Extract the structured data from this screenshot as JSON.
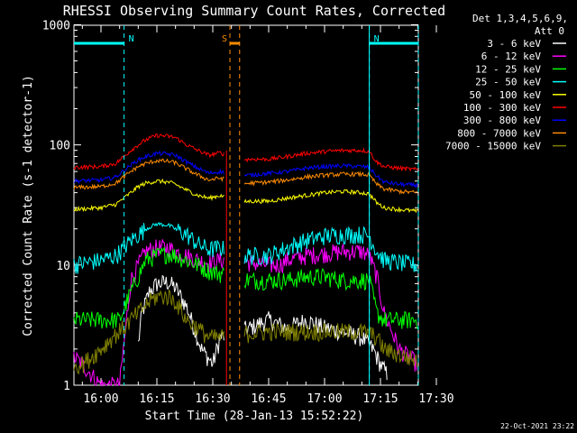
{
  "chart_data": {
    "type": "line",
    "title": "RHESSI Observing Summary Count Rates, Corrected",
    "xlabel": "Start Time (28-Jan-13 15:52:22)",
    "ylabel": "Corrected Count Rate (s-1 detector-1)",
    "yscale": "log",
    "ylim": [
      1,
      1000
    ],
    "xlim": [
      "15:52:22",
      "17:32:00"
    ],
    "y_ticks": [
      "1",
      "10",
      "100",
      "1000"
    ],
    "x_ticks": [
      "16:00",
      "16:15",
      "16:30",
      "16:45",
      "17:00",
      "17:15",
      "17:30"
    ],
    "x_tick_minutes": [
      0,
      15,
      30,
      45,
      60,
      75,
      90
    ],
    "legend_header": [
      "Det 1,3,4,5,6,9,",
      "Att 0"
    ],
    "legend_position": "right",
    "grid": false,
    "timestamp": "22-Oct-2021 23:22",
    "markers": [
      {
        "label": "N",
        "color": "#00ffff",
        "start_min": -8,
        "end_min": 6.2,
        "row": "top",
        "extends_to": "top-left"
      },
      {
        "label": "N",
        "color": "#00ffff",
        "start_min": 72,
        "end_min": 90,
        "row": "top",
        "extends_to": "top-right"
      },
      {
        "label": "S",
        "color": "#ff8c00",
        "start_min": 34.6,
        "end_min": 37.2,
        "row": "top"
      }
    ],
    "series": [
      {
        "name": "3 - 6 keV",
        "color": "#ffffff",
        "points": [
          [
            10,
            2.2
          ],
          [
            11,
            4.0
          ],
          [
            13,
            6.0
          ],
          [
            15,
            7.0
          ],
          [
            18,
            7.2
          ],
          [
            20,
            6.5
          ],
          [
            23,
            4.5
          ],
          [
            25,
            3.0
          ],
          [
            27,
            2.0
          ],
          [
            30,
            1.5
          ],
          [
            32,
            2.5
          ],
          [
            40,
            3.0
          ],
          [
            45,
            3.5
          ],
          [
            50,
            3.0
          ],
          [
            55,
            3.5
          ],
          [
            60,
            3.0
          ],
          [
            65,
            2.8
          ],
          [
            70,
            2.5
          ],
          [
            73,
            2.0
          ],
          [
            75,
            1.5
          ],
          [
            77,
            1.2
          ]
        ]
      },
      {
        "name": "6 - 12 keV",
        "color": "#ff00ff",
        "points": [
          [
            -8,
            1.8
          ],
          [
            -5,
            1.5
          ],
          [
            0,
            1.0
          ],
          [
            5,
            1.0
          ],
          [
            8,
            7.5
          ],
          [
            10,
            10
          ],
          [
            12,
            13
          ],
          [
            15,
            14
          ],
          [
            18,
            14
          ],
          [
            20,
            13
          ],
          [
            23,
            12
          ],
          [
            26,
            11
          ],
          [
            29,
            10.5
          ],
          [
            32,
            11
          ],
          [
            37,
            11
          ],
          [
            40,
            10.5
          ],
          [
            45,
            10
          ],
          [
            48,
            10
          ],
          [
            50,
            11
          ],
          [
            55,
            12
          ],
          [
            60,
            12.5
          ],
          [
            65,
            13
          ],
          [
            70,
            13
          ],
          [
            72,
            12
          ],
          [
            74,
            8.0
          ],
          [
            76,
            4.0
          ],
          [
            80,
            2.0
          ],
          [
            85,
            1.5
          ]
        ]
      },
      {
        "name": "12 - 25 keV",
        "color": "#00ff00",
        "points": [
          [
            -8,
            3.5
          ],
          [
            0,
            3.5
          ],
          [
            5,
            3.5
          ],
          [
            8,
            6.0
          ],
          [
            10,
            8.0
          ],
          [
            12,
            11
          ],
          [
            15,
            12
          ],
          [
            18,
            12.5
          ],
          [
            20,
            12
          ],
          [
            23,
            11
          ],
          [
            26,
            10
          ],
          [
            29,
            9.0
          ],
          [
            32,
            8.5
          ],
          [
            37,
            8.0
          ],
          [
            40,
            7.5
          ],
          [
            45,
            7.5
          ],
          [
            50,
            7.5
          ],
          [
            55,
            8.0
          ],
          [
            60,
            8.0
          ],
          [
            65,
            7.5
          ],
          [
            70,
            7.5
          ],
          [
            72,
            7.5
          ],
          [
            74,
            4.0
          ],
          [
            76,
            3.5
          ],
          [
            80,
            3.5
          ],
          [
            85,
            3.5
          ],
          [
            90,
            3.5
          ]
        ]
      },
      {
        "name": "25 - 50 keV",
        "color": "#00ffff",
        "points": [
          [
            -8,
            10
          ],
          [
            0,
            11
          ],
          [
            4,
            12
          ],
          [
            8,
            16
          ],
          [
            10,
            18
          ],
          [
            12,
            20
          ],
          [
            15,
            22
          ],
          [
            18,
            21.5
          ],
          [
            20,
            20
          ],
          [
            23,
            18
          ],
          [
            26,
            15
          ],
          [
            29,
            13.5
          ],
          [
            32,
            14
          ],
          [
            37,
            12
          ],
          [
            40,
            12
          ],
          [
            45,
            12
          ],
          [
            50,
            14
          ],
          [
            55,
            16
          ],
          [
            60,
            17.5
          ],
          [
            65,
            18
          ],
          [
            70,
            18
          ],
          [
            72,
            17.5
          ],
          [
            74,
            13
          ],
          [
            76,
            11
          ],
          [
            80,
            10.5
          ],
          [
            85,
            10
          ],
          [
            90,
            10
          ]
        ]
      },
      {
        "name": "50 - 100 keV",
        "color": "#ffff00",
        "points": [
          [
            -8,
            29
          ],
          [
            0,
            30
          ],
          [
            4,
            32
          ],
          [
            8,
            40
          ],
          [
            10,
            45
          ],
          [
            12,
            48
          ],
          [
            15,
            50
          ],
          [
            18,
            49
          ],
          [
            20,
            47
          ],
          [
            23,
            42
          ],
          [
            26,
            38
          ],
          [
            29,
            36
          ],
          [
            32,
            38
          ],
          [
            37,
            33
          ],
          [
            40,
            34
          ],
          [
            45,
            34
          ],
          [
            50,
            36
          ],
          [
            55,
            38
          ],
          [
            60,
            40
          ],
          [
            65,
            41
          ],
          [
            70,
            40
          ],
          [
            72,
            39
          ],
          [
            74,
            33
          ],
          [
            76,
            30
          ],
          [
            80,
            29
          ],
          [
            85,
            28
          ],
          [
            90,
            27
          ]
        ]
      },
      {
        "name": "100 - 300 keV",
        "color": "#ff0000",
        "points": [
          [
            -8,
            65
          ],
          [
            0,
            66
          ],
          [
            4,
            70
          ],
          [
            8,
            90
          ],
          [
            10,
            100
          ],
          [
            12,
            110
          ],
          [
            15,
            120
          ],
          [
            18,
            118
          ],
          [
            20,
            115
          ],
          [
            23,
            100
          ],
          [
            26,
            90
          ],
          [
            29,
            82
          ],
          [
            32,
            86
          ],
          [
            37,
            75
          ],
          [
            40,
            76
          ],
          [
            45,
            76
          ],
          [
            50,
            80
          ],
          [
            55,
            85
          ],
          [
            60,
            88
          ],
          [
            65,
            90
          ],
          [
            70,
            90
          ],
          [
            72,
            88
          ],
          [
            74,
            72
          ],
          [
            76,
            66
          ],
          [
            80,
            64
          ],
          [
            85,
            62
          ],
          [
            90,
            60
          ]
        ]
      },
      {
        "name": "300 - 800 keV",
        "color": "#0000ff",
        "points": [
          [
            -8,
            50
          ],
          [
            0,
            51
          ],
          [
            4,
            54
          ],
          [
            8,
            68
          ],
          [
            10,
            75
          ],
          [
            12,
            80
          ],
          [
            15,
            85
          ],
          [
            18,
            84
          ],
          [
            20,
            82
          ],
          [
            23,
            72
          ],
          [
            26,
            64
          ],
          [
            29,
            58
          ],
          [
            32,
            60
          ],
          [
            37,
            55
          ],
          [
            40,
            56
          ],
          [
            45,
            58
          ],
          [
            50,
            60
          ],
          [
            55,
            64
          ],
          [
            60,
            66
          ],
          [
            65,
            67
          ],
          [
            70,
            66
          ],
          [
            72,
            65
          ],
          [
            74,
            55
          ],
          [
            76,
            49
          ],
          [
            80,
            47
          ],
          [
            85,
            46
          ],
          [
            90,
            44
          ]
        ]
      },
      {
        "name": "800 - 7000 keV",
        "color": "#ff8c00",
        "points": [
          [
            -8,
            44
          ],
          [
            0,
            45
          ],
          [
            4,
            48
          ],
          [
            8,
            60
          ],
          [
            10,
            66
          ],
          [
            12,
            70
          ],
          [
            15,
            74
          ],
          [
            18,
            73
          ],
          [
            20,
            71
          ],
          [
            23,
            63
          ],
          [
            26,
            56
          ],
          [
            29,
            51
          ],
          [
            32,
            53
          ],
          [
            37,
            47
          ],
          [
            40,
            48
          ],
          [
            45,
            49
          ],
          [
            50,
            51
          ],
          [
            55,
            54
          ],
          [
            60,
            56
          ],
          [
            65,
            57
          ],
          [
            70,
            57
          ],
          [
            72,
            56
          ],
          [
            74,
            47
          ],
          [
            76,
            43
          ],
          [
            80,
            41
          ],
          [
            85,
            40
          ],
          [
            90,
            38
          ]
        ]
      },
      {
        "name": "7000 - 15000 keV",
        "color": "#808000",
        "points": [
          [
            -8,
            1.5
          ],
          [
            -5,
            1.5
          ],
          [
            0,
            2.0
          ],
          [
            3,
            2.5
          ],
          [
            6,
            3.0
          ],
          [
            8,
            3.5
          ],
          [
            10,
            4.0
          ],
          [
            13,
            5.0
          ],
          [
            15,
            5.5
          ],
          [
            18,
            5.5
          ],
          [
            20,
            5.0
          ],
          [
            23,
            3.5
          ],
          [
            26,
            3.0
          ],
          [
            29,
            2.5
          ],
          [
            32,
            2.5
          ],
          [
            37,
            2.7
          ],
          [
            40,
            2.7
          ],
          [
            45,
            2.8
          ],
          [
            50,
            2.8
          ],
          [
            55,
            2.8
          ],
          [
            60,
            2.8
          ],
          [
            65,
            2.8
          ],
          [
            70,
            2.8
          ],
          [
            72,
            2.7
          ],
          [
            74,
            2.5
          ],
          [
            76,
            2.0
          ],
          [
            80,
            1.8
          ],
          [
            85,
            1.6
          ],
          [
            90,
            1.5
          ]
        ]
      }
    ]
  }
}
